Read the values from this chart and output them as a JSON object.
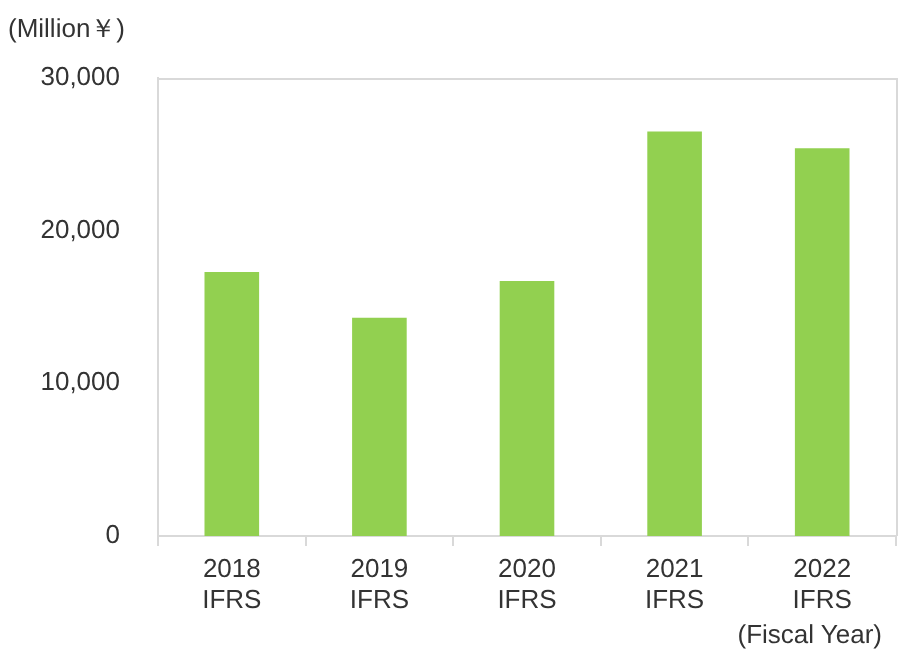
{
  "chart_data": {
    "type": "bar",
    "xlabel": "(Fiscal Year)",
    "ylabel": "(Million￥)",
    "categories": [
      "2018 IFRS",
      "2019 IFRS",
      "2020 IFRS",
      "2021 IFRS",
      "2022 IFRS"
    ],
    "values": [
      17300,
      14300,
      16700,
      26500,
      25400
    ],
    "color": "#92d050",
    "ylim": [
      0,
      30000
    ],
    "yticks": [
      0,
      {
        "value": 10000,
        "label": "10,000"
      },
      {
        "value": 20000,
        "label": "20,000"
      },
      {
        "value": 30000,
        "label": "30,000"
      }
    ],
    "grid": false,
    "legend": false
  }
}
